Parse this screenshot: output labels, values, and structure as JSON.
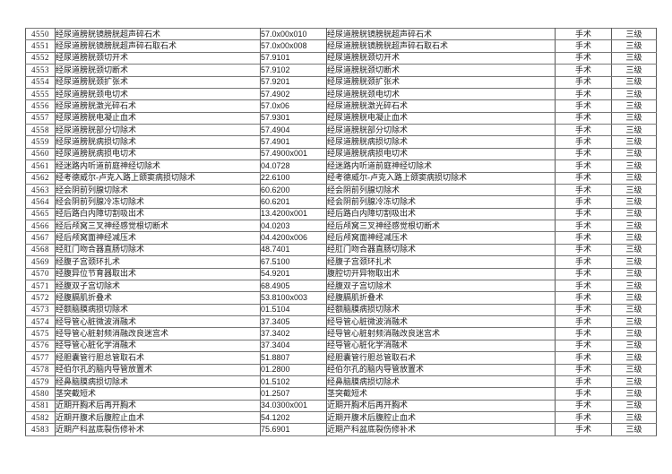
{
  "table": {
    "category_label": "手术",
    "grade_label": "三级",
    "rows": [
      {
        "no": "4550",
        "name": "经尿道膀胱镜膀胱超声碎石术",
        "code": "57.0x00x010",
        "name2": "经尿道膀胱镜膀胱超声碎石术",
        "type": "手术",
        "level": "三级"
      },
      {
        "no": "4551",
        "name": "经尿道膀胱镜膀胱超声碎石取石术",
        "code": "57.0x00x008",
        "name2": "经尿道膀胱镜膀胱超声碎石取石术",
        "type": "手术",
        "level": "三级"
      },
      {
        "no": "4552",
        "name": "经尿道膀胱颈切开术",
        "code": "57.9101",
        "name2": "经尿道膀胱颈切开术",
        "type": "手术",
        "level": "三级"
      },
      {
        "no": "4553",
        "name": "经尿道膀胱颈切断术",
        "code": "57.9102",
        "name2": "经尿道膀胱颈切断术",
        "type": "手术",
        "level": "三级"
      },
      {
        "no": "4554",
        "name": "经尿道膀胱颈扩张术",
        "code": "57.9201",
        "name2": "经尿道膀胱颈扩张术",
        "type": "手术",
        "level": "三级"
      },
      {
        "no": "4555",
        "name": "经尿道膀胱颈电切术",
        "code": "57.4902",
        "name2": "经尿道膀胱颈电切术",
        "type": "手术",
        "level": "三级"
      },
      {
        "no": "4556",
        "name": "经尿道膀胱激光碎石术",
        "code": "57.0x06",
        "name2": "经尿道膀胱激光碎石术",
        "type": "手术",
        "level": "三级"
      },
      {
        "no": "4557",
        "name": "经尿道膀胱电凝止血术",
        "code": "57.9301",
        "name2": "经尿道膀胱电凝止血术",
        "type": "手术",
        "level": "三级"
      },
      {
        "no": "4558",
        "name": "经尿道膀胱部分切除术",
        "code": "57.4904",
        "name2": "经尿道膀胱部分切除术",
        "type": "手术",
        "level": "三级"
      },
      {
        "no": "4559",
        "name": "经尿道膀胱病损切除术",
        "code": "57.4901",
        "name2": "经尿道膀胱病损切除术",
        "type": "手术",
        "level": "三级"
      },
      {
        "no": "4560",
        "name": "经尿道膀胱病损电切术",
        "code": "57.4900x001",
        "name2": "经尿道膀胱病损电切术",
        "type": "手术",
        "level": "三级"
      },
      {
        "no": "4561",
        "name": "经迷路内听道前庭神经切除术",
        "code": "04.0728",
        "name2": "经迷路内听道前庭神经切除术",
        "type": "手术",
        "level": "三级"
      },
      {
        "no": "4562",
        "name": "经考德威尔-卢克入路上颌窦病损切除术",
        "code": "22.6100",
        "name2": "经考德威尔-卢克入路上颌窦病损切除术",
        "type": "手术",
        "level": "三级"
      },
      {
        "no": "4563",
        "name": "经会阴前列腺切除术",
        "code": "60.6200",
        "name2": "经会阴前列腺切除术",
        "type": "手术",
        "level": "三级"
      },
      {
        "no": "4564",
        "name": "经会阴前列腺冷冻切除术",
        "code": "60.6201",
        "name2": "经会阴前列腺冷冻切除术",
        "type": "手术",
        "level": "三级"
      },
      {
        "no": "4565",
        "name": "经后路白内障切割吸出术",
        "code": "13.4200x001",
        "name2": "经后路白内障切割吸出术",
        "type": "手术",
        "level": "三级"
      },
      {
        "no": "4566",
        "name": "经后颅窝三叉神经感觉根切断术",
        "code": "04.0203",
        "name2": "经后颅窝三叉神经感觉根切断术",
        "type": "手术",
        "level": "三级"
      },
      {
        "no": "4567",
        "name": "经后颅窝面神经减压术",
        "code": "04.4200x006",
        "name2": "经后颅窝面神经减压术",
        "type": "手术",
        "level": "三级"
      },
      {
        "no": "4568",
        "name": "经肛门吻合器直肠切除术",
        "code": "48.7401",
        "name2": "经肛门吻合器直肠切除术",
        "type": "手术",
        "level": "三级"
      },
      {
        "no": "4569",
        "name": "经腹子宫颈环扎术",
        "code": "67.5100",
        "name2": "经腹子宫颈环扎术",
        "type": "手术",
        "level": "三级"
      },
      {
        "no": "4570",
        "name": "经腹异位节育器取出术",
        "code": "54.9201",
        "name2": "腹腔切开异物取出术",
        "type": "手术",
        "level": "三级"
      },
      {
        "no": "4571",
        "name": "经腹双子宫切除术",
        "code": "68.4905",
        "name2": "经腹双子宫切除术",
        "type": "手术",
        "level": "三级"
      },
      {
        "no": "4572",
        "name": "经腹膈肌折叠术",
        "code": "53.8100x003",
        "name2": "经腹膈肌折叠术",
        "type": "手术",
        "level": "三级"
      },
      {
        "no": "4573",
        "name": "经额脑膜病损切除术",
        "code": "01.5104",
        "name2": "经额脑膜病损切除术",
        "type": "手术",
        "level": "三级"
      },
      {
        "no": "4574",
        "name": "经导管心脏微波消融术",
        "code": "37.3405",
        "name2": "经导管心脏微波消融术",
        "type": "手术",
        "level": "三级"
      },
      {
        "no": "4575",
        "name": "经导管心脏射频消融改良迷宫术",
        "code": "37.3402",
        "name2": "经导管心脏射频消融改良迷宫术",
        "type": "手术",
        "level": "三级"
      },
      {
        "no": "4576",
        "name": "经导管心脏化学消融术",
        "code": "37.3404",
        "name2": "经导管心脏化学消融术",
        "type": "手术",
        "level": "三级"
      },
      {
        "no": "4577",
        "name": "经胆囊管行胆总管取石术",
        "code": "51.8807",
        "name2": "经胆囊管行胆总管取石术",
        "type": "手术",
        "level": "三级"
      },
      {
        "no": "4578",
        "name": "经伯尔孔的脑内导管放置术",
        "code": "01.2800",
        "name2": "经伯尔孔的脑内导管放置术",
        "type": "手术",
        "level": "三级"
      },
      {
        "no": "4579",
        "name": "经鼻脑膜病损切除术",
        "code": "01.5102",
        "name2": "经鼻脑膜病损切除术",
        "type": "手术",
        "level": "三级"
      },
      {
        "no": "4580",
        "name": "茎突截短术",
        "code": "01.2507",
        "name2": "茎突截短术",
        "type": "手术",
        "level": "三级"
      },
      {
        "no": "4581",
        "name": "近期开胸术后再开胸术",
        "code": "34.0300x001",
        "name2": "近期开胸术后再开胸术",
        "type": "手术",
        "level": "三级"
      },
      {
        "no": "4582",
        "name": "近期开腹术后腹腔止血术",
        "code": "54.1202",
        "name2": "近期开腹术后腹腔止血术",
        "type": "手术",
        "level": "三级"
      },
      {
        "no": "4583",
        "name": "近期产科盆底裂伤修补术",
        "code": "75.6901",
        "name2": "近期产科盆底裂伤修补术",
        "type": "手术",
        "level": "三级"
      }
    ]
  }
}
